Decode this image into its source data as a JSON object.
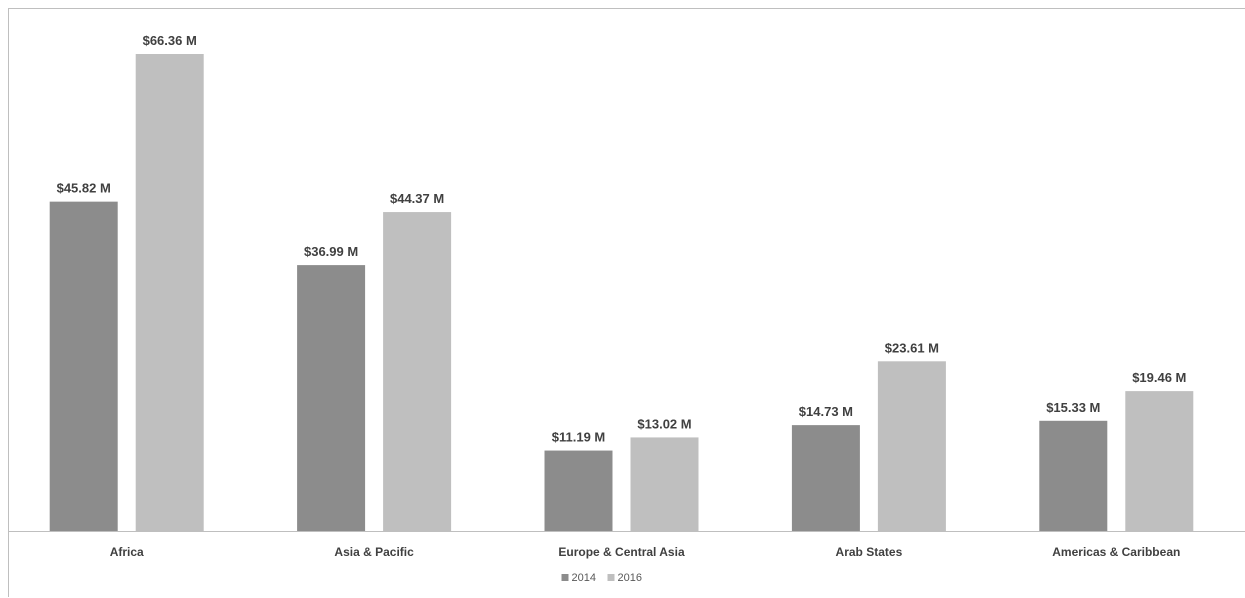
{
  "chart_data": {
    "type": "bar",
    "title": "",
    "xlabel": "",
    "ylabel": "",
    "categories": [
      "Africa",
      "Asia & Pacific",
      "Europe & Central Asia",
      "Arab States",
      "Americas & Caribbean"
    ],
    "series": [
      {
        "name": "2014",
        "color": "#8c8c8c",
        "values": [
          45.82,
          36.99,
          11.19,
          14.73,
          15.33
        ],
        "labels": [
          "$45.82 M",
          "$36.99 M",
          "$11.19 M",
          "$14.73 M",
          "$15.33 M"
        ]
      },
      {
        "name": "2016",
        "color": "#bfbfbf",
        "values": [
          66.36,
          44.37,
          13.02,
          23.61,
          19.46
        ],
        "labels": [
          "$66.36 M",
          "$44.37 M",
          "$13.02 M",
          "$23.61 M",
          "$19.46 M"
        ]
      }
    ],
    "ylim": [
      0,
      66.36
    ],
    "grid": false,
    "legend": "bottom-center"
  }
}
